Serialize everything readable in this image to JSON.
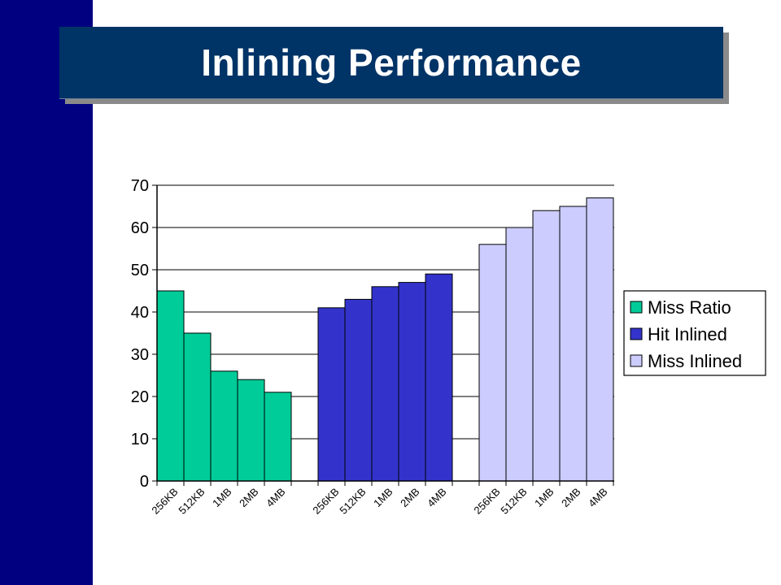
{
  "slide": {
    "title": "Inlining Performance",
    "colors": {
      "side_band": "#000080",
      "title_bg": "#003366",
      "title_text": "#ffffff"
    }
  },
  "chart_data": {
    "type": "bar",
    "title": "",
    "xlabel": "",
    "ylabel": "",
    "ylim": [
      0,
      70
    ],
    "yticks": [
      0,
      10,
      20,
      30,
      40,
      50,
      60,
      70
    ],
    "grid": true,
    "legend_position": "right",
    "categories": [
      "256KB",
      "512KB",
      "1MB",
      "2MB",
      "4MB"
    ],
    "series": [
      {
        "name": "Miss Ratio",
        "color": "#00cc99",
        "values": [
          45,
          35,
          26,
          24,
          21
        ]
      },
      {
        "name": "Hit Inlined",
        "color": "#3333cc",
        "values": [
          41,
          43,
          46,
          47,
          49
        ]
      },
      {
        "name": "Miss Inlined",
        "color": "#ccccff",
        "values": [
          56,
          60,
          64,
          65,
          67
        ]
      }
    ]
  }
}
